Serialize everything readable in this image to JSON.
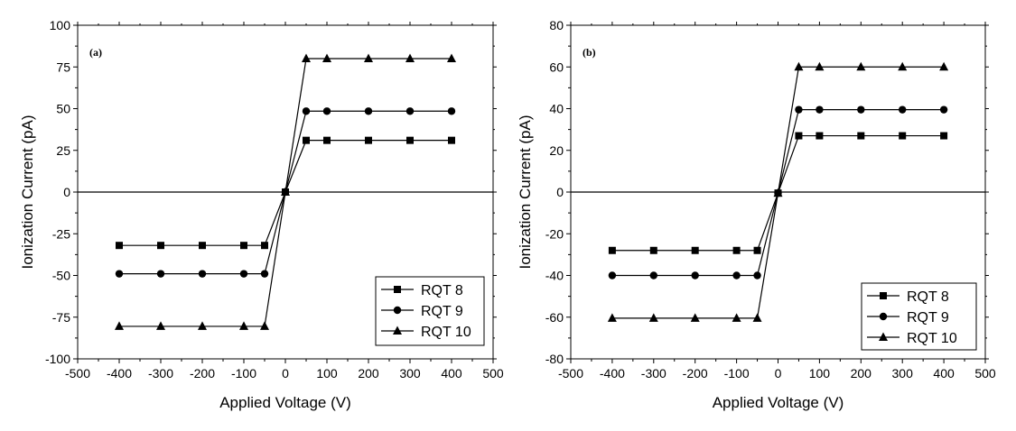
{
  "chart_data": [
    {
      "type": "line",
      "panel_label": "(a)",
      "xlabel": "Applied Voltage (V)",
      "ylabel": "Ionization Current (pA)",
      "xlim": [
        -500,
        500
      ],
      "ylim": [
        -100,
        100
      ],
      "xticks": [
        -500,
        -400,
        -300,
        -200,
        -100,
        0,
        100,
        200,
        300,
        400,
        500
      ],
      "yticks": [
        -100,
        -75,
        -50,
        -25,
        0,
        25,
        50,
        75,
        100
      ],
      "x": [
        -400,
        -300,
        -200,
        -100,
        -50,
        0,
        50,
        100,
        200,
        300,
        400
      ],
      "series": [
        {
          "name": "RQT 8",
          "marker": "square",
          "values": [
            -32,
            -32,
            -32,
            -32,
            -32,
            0,
            31,
            31,
            31,
            31,
            31
          ]
        },
        {
          "name": "RQT 9",
          "marker": "circle",
          "values": [
            -49,
            -49,
            -49,
            -49,
            -49,
            0,
            48.5,
            48.5,
            48.5,
            48.5,
            48.5
          ]
        },
        {
          "name": "RQT 10",
          "marker": "triangle",
          "values": [
            -80.5,
            -80.5,
            -80.5,
            -80.5,
            -80.5,
            0,
            80,
            80,
            80,
            80,
            80
          ]
        }
      ],
      "zero_line": true,
      "legend_position": "bottom-right",
      "grid": false
    },
    {
      "type": "line",
      "panel_label": "(b)",
      "xlabel": "Applied Voltage (V)",
      "ylabel": "Ionization Current (pA)",
      "xlim": [
        -500,
        500
      ],
      "ylim": [
        -80,
        80
      ],
      "xticks": [
        -500,
        -400,
        -300,
        -200,
        -100,
        0,
        100,
        200,
        300,
        400,
        500
      ],
      "yticks": [
        -80,
        -60,
        -40,
        -20,
        0,
        20,
        40,
        60,
        80
      ],
      "x": [
        -400,
        -300,
        -200,
        -100,
        -50,
        0,
        50,
        100,
        200,
        300,
        400
      ],
      "series": [
        {
          "name": "RQT 8",
          "marker": "square",
          "values": [
            -28,
            -28,
            -28,
            -28,
            -28,
            -0.5,
            27,
            27,
            27,
            27,
            27
          ]
        },
        {
          "name": "RQT 9",
          "marker": "circle",
          "values": [
            -40,
            -40,
            -40,
            -40,
            -40,
            -0.5,
            39.5,
            39.5,
            39.5,
            39.5,
            39.5
          ]
        },
        {
          "name": "RQT 10",
          "marker": "triangle",
          "values": [
            -60.5,
            -60.5,
            -60.5,
            -60.5,
            -60.5,
            -0.5,
            60,
            60,
            60,
            60,
            60
          ]
        }
      ],
      "zero_line": true,
      "legend_position": "bottom-right",
      "grid": false
    }
  ]
}
